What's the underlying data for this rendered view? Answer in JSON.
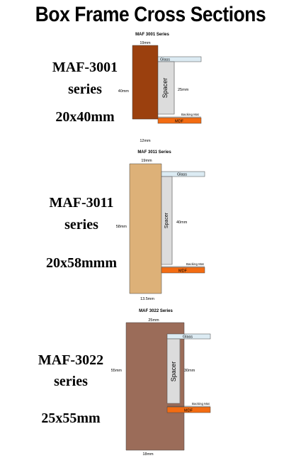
{
  "title": "Box Frame Cross Sections",
  "sections": [
    {
      "label": "MAF-3001",
      "series_word": "series",
      "size": "20x40mm",
      "diagram_title": "MAF 3001 Series",
      "top_dim": "19mm",
      "side_dim": "40mm",
      "inner_dim": "25mm",
      "bottom_dim": "12mm",
      "glass": "Glass",
      "spacer": "Spacer",
      "backing": "Backing Mat",
      "mdf": "MDF",
      "frame_color": "#9b400e"
    },
    {
      "label": "MAF-3011",
      "series_word": "series",
      "size": "20x58mmm",
      "diagram_title": "MAF 3011 Series",
      "top_dim": "19mm",
      "side_dim": "58mm",
      "inner_dim": "40mm",
      "bottom_dim": "13.5mm",
      "glass": "Glass",
      "spacer": "Spacer",
      "backing": "Backing Mat",
      "mdf": "MDF",
      "frame_color": "#ddb178"
    },
    {
      "label": "MAF-3022",
      "series_word": "series",
      "size": "25x55mm",
      "diagram_title": "MAF 3022 Series",
      "top_dim": "25mm",
      "side_dim": "55mm",
      "inner_dim": "30mm",
      "bottom_dim": "18mm",
      "glass": "Glass",
      "spacer": "Spacer",
      "backing": "Backing Mat",
      "mdf": "MDF",
      "frame_color": "#9b6c59"
    }
  ],
  "colors": {
    "glass": "#dcebf3",
    "spacer": "#dcdcdc",
    "mdf": "#f36c12"
  }
}
